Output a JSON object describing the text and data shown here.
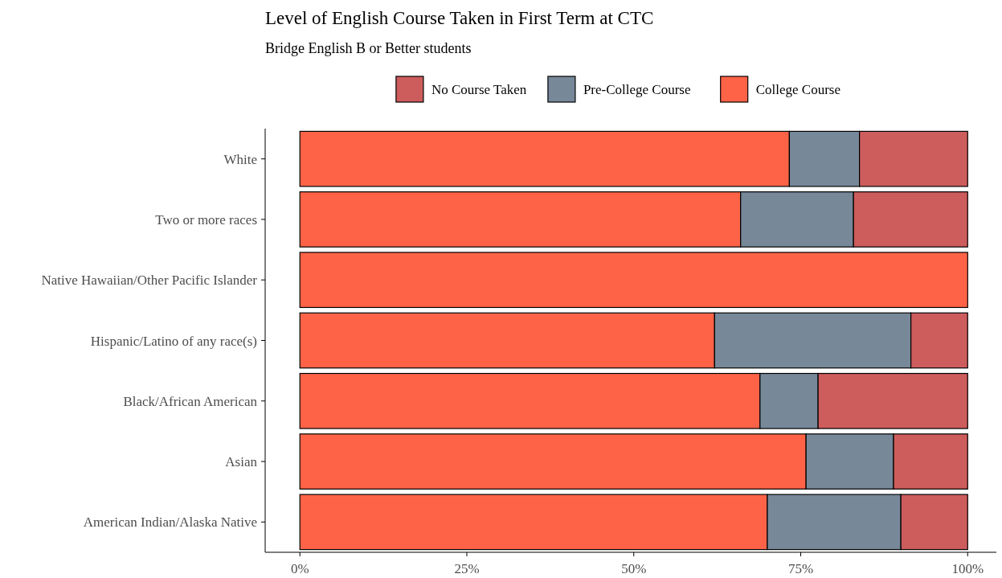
{
  "chart_data": {
    "type": "bar",
    "orientation": "horizontal",
    "stacked": true,
    "title": "Level of English Course Taken in First Term at CTC",
    "subtitle": "Bridge English B or Better students",
    "categories": [
      "White",
      "Two or more races",
      "Native Hawaiian/Other Pacific Islander",
      "Hispanic/Latino of any race(s)",
      "Black/African American",
      "Asian",
      "American Indian/Alaska Native"
    ],
    "series": [
      {
        "name": "College Course",
        "color": "#ff6347",
        "values": [
          73.3,
          66,
          100,
          62.1,
          68.9,
          75.8,
          70
        ]
      },
      {
        "name": "Pre-College Course",
        "color": "#778899",
        "values": [
          10.5,
          16.9,
          0,
          29.4,
          8.7,
          13.1,
          20
        ]
      },
      {
        "name": "No Course Taken",
        "color": "#cd5c5c",
        "values": [
          16.2,
          17.1,
          0,
          8.5,
          22.4,
          11.1,
          10
        ]
      }
    ],
    "xlim": [
      -5.2,
      104.3
    ],
    "xticks": [
      {
        "value": 0,
        "label": "0%"
      },
      {
        "value": 25,
        "label": "25%"
      },
      {
        "value": 50,
        "label": "50%"
      },
      {
        "value": 75,
        "label": "75%"
      },
      {
        "value": 100,
        "label": "100%"
      }
    ],
    "grid": false,
    "legend": "top"
  }
}
